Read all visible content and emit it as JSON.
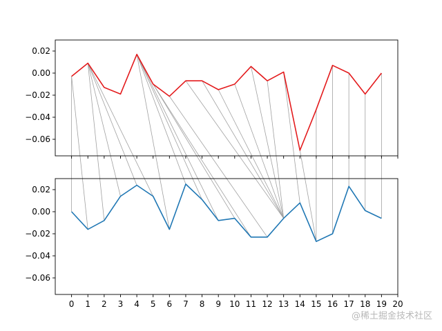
{
  "chart_data": [
    {
      "type": "line",
      "series": [
        {
          "color": "#e31a1c",
          "x": [
            0,
            1,
            2,
            3,
            4,
            5,
            6,
            7,
            8,
            9,
            10,
            11,
            12,
            13,
            14,
            15,
            16,
            17,
            18,
            19
          ],
          "values": [
            -0.003,
            0.009,
            -0.013,
            -0.019,
            0.017,
            -0.01,
            -0.021,
            -0.007,
            -0.007,
            -0.015,
            -0.01,
            0.006,
            -0.007,
            0.001,
            -0.07,
            -0.033,
            0.007,
            0.0,
            -0.019,
            0.0
          ]
        }
      ],
      "ylim": [
        -0.075,
        0.03
      ],
      "yticks": [
        0.02,
        0.0,
        -0.02,
        -0.04,
        -0.06
      ],
      "ytick_labels": [
        "0.02",
        "0.00",
        "−0.02",
        "−0.04",
        "−0.06"
      ],
      "xlim": [
        -1,
        20
      ],
      "grid": false
    },
    {
      "type": "line",
      "series": [
        {
          "color": "#1f77b4",
          "x": [
            0,
            1,
            2,
            3,
            4,
            5,
            6,
            7,
            8,
            9,
            10,
            11,
            12,
            13,
            14,
            15,
            16,
            17,
            18,
            19
          ],
          "values": [
            0.0,
            -0.016,
            -0.008,
            0.014,
            0.024,
            0.014,
            -0.016,
            0.025,
            0.011,
            -0.008,
            -0.006,
            -0.023,
            -0.023,
            -0.006,
            0.008,
            -0.027,
            -0.02,
            0.023,
            0.001,
            -0.006
          ]
        }
      ],
      "ylim": [
        -0.075,
        0.03
      ],
      "yticks": [
        0.02,
        0.0,
        -0.02,
        -0.04,
        -0.06
      ],
      "ytick_labels": [
        "0.02",
        "0.00",
        "−0.02",
        "−0.04",
        "−0.06"
      ],
      "xlim": [
        -1,
        20
      ],
      "xticks": [
        0,
        1,
        2,
        3,
        4,
        5,
        6,
        7,
        8,
        9,
        10,
        11,
        12,
        13,
        14,
        15,
        16,
        17,
        18,
        19,
        20
      ],
      "xtick_labels": [
        "0",
        "1",
        "2",
        "3",
        "4",
        "5",
        "6",
        "7",
        "8",
        "9",
        "10",
        "11",
        "12",
        "13",
        "14",
        "15",
        "16",
        "17",
        "18",
        "19",
        "20"
      ],
      "grid": false
    }
  ],
  "alignment": {
    "color": "#a0a0a0",
    "pairs": [
      [
        0,
        0
      ],
      [
        0,
        1
      ],
      [
        1,
        2
      ],
      [
        1,
        3
      ],
      [
        1,
        4
      ],
      [
        1,
        5
      ],
      [
        4,
        6
      ],
      [
        4,
        7
      ],
      [
        4,
        8
      ],
      [
        4,
        9
      ],
      [
        5,
        10
      ],
      [
        5,
        11
      ],
      [
        6,
        12
      ],
      [
        7,
        13
      ],
      [
        8,
        13
      ],
      [
        9,
        13
      ],
      [
        10,
        13
      ],
      [
        11,
        13
      ],
      [
        12,
        13
      ],
      [
        13,
        14
      ],
      [
        14,
        15
      ],
      [
        15,
        15
      ],
      [
        16,
        16
      ],
      [
        17,
        17
      ],
      [
        18,
        18
      ],
      [
        19,
        19
      ]
    ]
  },
  "watermark": "@稀土掘金技术社区"
}
